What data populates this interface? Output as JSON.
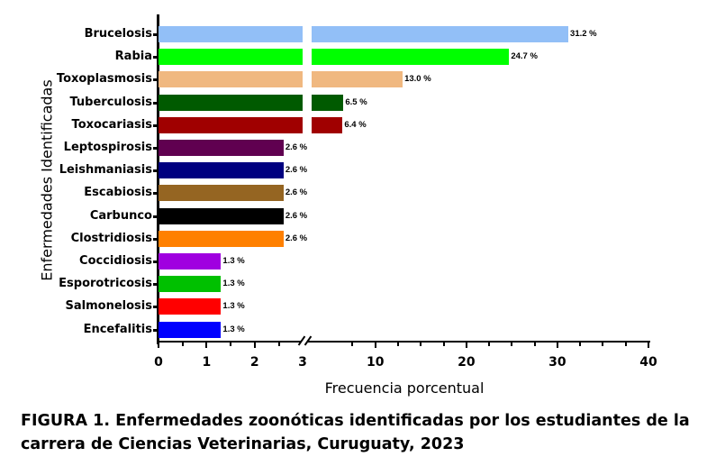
{
  "chart_data": {
    "type": "bar",
    "orientation": "horizontal",
    "title": "",
    "xlabel": "Frecuencia porcentual",
    "ylabel": "Enfermedades Identificadas",
    "categories": [
      "Brucelosis",
      "Rabia",
      "Toxoplasmosis",
      "Tuberculosis",
      "Toxocariasis",
      "Leptospirosis",
      "Leishmaniasis",
      "Escabiosis",
      "Carbunco",
      "Clostridiosis",
      "Coccidiosis",
      "Esporotricosis",
      "Salmonelosis",
      "Encefalitis"
    ],
    "values": [
      31.2,
      24.7,
      13.0,
      6.5,
      6.4,
      2.6,
      2.6,
      2.6,
      2.6,
      2.6,
      1.3,
      1.3,
      1.3,
      1.3
    ],
    "value_labels": [
      "31.2 %",
      "24.7 %",
      "13.0 %",
      "6.5 %",
      "6.4 %",
      "2.6 %",
      "2.6 %",
      "2.6 %",
      "2.6 %",
      "2.6 %",
      "1.3 %",
      "1.3 %",
      "1.3 %",
      "1.3 %"
    ],
    "colors": [
      "#92bff7",
      "#00ff00",
      "#f0b880",
      "#005a00",
      "#a00000",
      "#600050",
      "#000080",
      "#956522",
      "#000000",
      "#ff8000",
      "#a000e0",
      "#00c000",
      "#ff0000",
      "#0000ff"
    ],
    "x_axis": {
      "broken": true,
      "segments": [
        {
          "range": [
            0,
            3
          ],
          "ticks": [
            "0",
            "1",
            "2",
            "3"
          ]
        },
        {
          "range": [
            3,
            40
          ],
          "ticks": [
            "10",
            "20",
            "30",
            "40"
          ]
        }
      ],
      "tick_labels": [
        "0",
        "1",
        "2",
        "3",
        "10",
        "20",
        "30",
        "40"
      ]
    },
    "xlim": [
      0,
      40
    ],
    "grid": false,
    "legend": "none"
  },
  "caption": "FIGURA 1. Enfermedades zoonóticas identificadas por los estudiantes de la carrera de Ciencias Veterinarias, Curuguaty, 2023"
}
